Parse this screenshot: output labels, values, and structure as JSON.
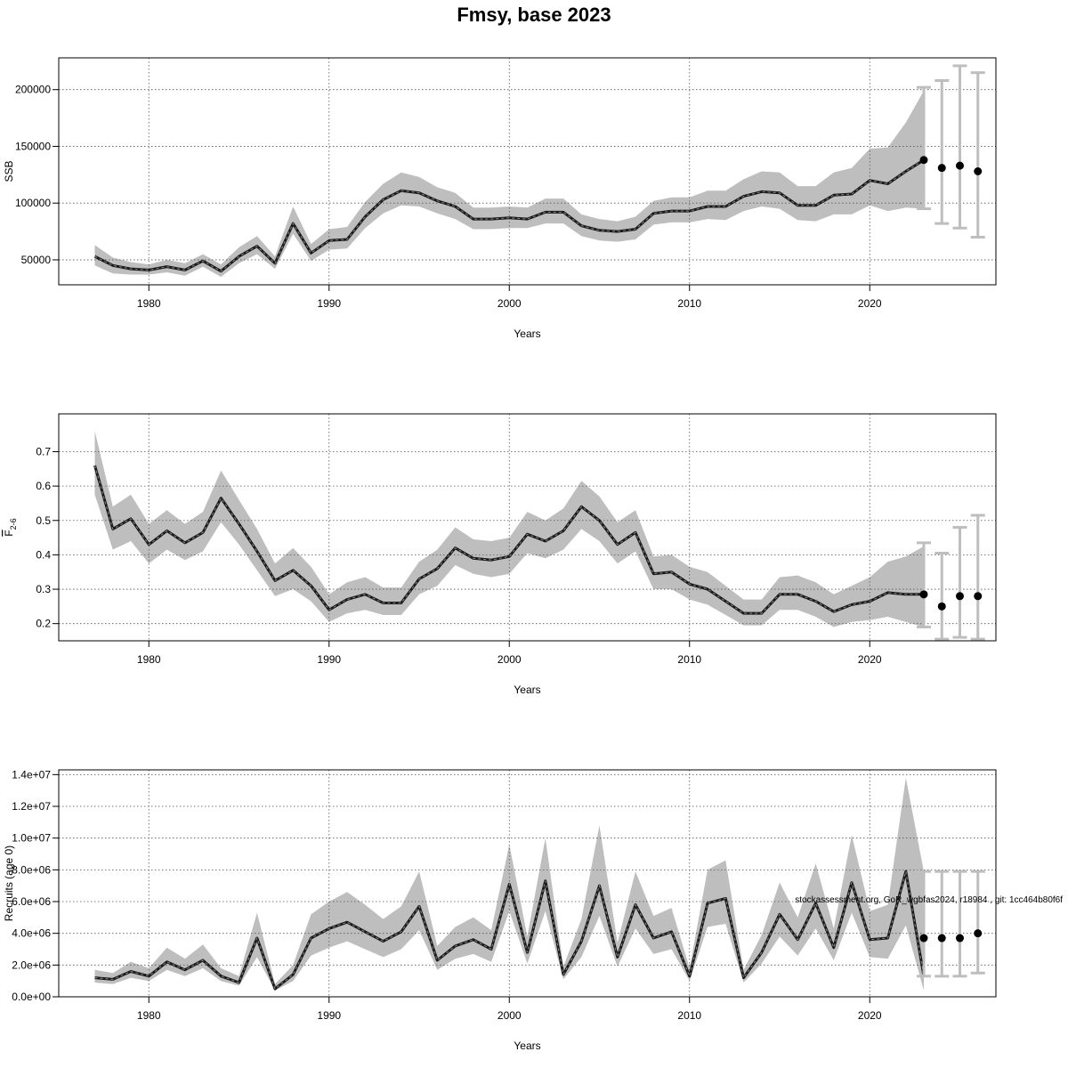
{
  "figure_title": "Fmsy, base 2023",
  "footer_note": "stockassessment.org, GoR_wgbfas2024, r18984 , git: 1cc464b80f6f",
  "colors": {
    "band": "#bebebe",
    "line": "#1a1a1a",
    "error_bar": "#bebebe",
    "point": "#000000",
    "grid": "#555555"
  },
  "chart_data": [
    {
      "type": "line",
      "xlabel": "Years",
      "ylabel": "SSB",
      "xlim": [
        1975,
        2027
      ],
      "ylim": [
        28000,
        228000
      ],
      "x_ticks": [
        1980,
        1990,
        2000,
        2010,
        2020
      ],
      "y_ticks": [
        50000,
        100000,
        150000,
        200000
      ],
      "y_tick_labels": [
        "50000",
        "100000",
        "150000",
        "200000"
      ],
      "grid": true,
      "series": [
        {
          "x": [
            1977,
            1978,
            1979,
            1980,
            1981,
            1982,
            1983,
            1984,
            1985,
            1986,
            1987,
            1988,
            1989,
            1990,
            1991,
            1992,
            1993,
            1994,
            1995,
            1996,
            1997,
            1998,
            1999,
            2000,
            2001,
            2002,
            2003,
            2004,
            2005,
            2006,
            2007,
            2008,
            2009,
            2010,
            2011,
            2012,
            2013,
            2014,
            2015,
            2016,
            2017,
            2018,
            2019,
            2020,
            2021,
            2022,
            2023
          ],
          "values": [
            53000,
            45000,
            42000,
            41000,
            44000,
            41000,
            49000,
            40000,
            53000,
            62000,
            47000,
            82000,
            56000,
            67000,
            68000,
            88000,
            103000,
            111000,
            109000,
            102000,
            97000,
            86000,
            86000,
            87000,
            86000,
            92000,
            92000,
            80000,
            76000,
            75000,
            77000,
            91000,
            93000,
            93000,
            97000,
            97000,
            106000,
            110000,
            109000,
            98000,
            98000,
            107000,
            108000,
            120000,
            117000,
            128000,
            138000
          ],
          "lower": [
            45000,
            38000,
            37000,
            37000,
            39000,
            36000,
            44000,
            35000,
            47000,
            55000,
            42000,
            73000,
            49000,
            59000,
            60000,
            78000,
            91000,
            98000,
            97000,
            91000,
            86000,
            77000,
            77000,
            78000,
            78000,
            82000,
            82000,
            71000,
            67000,
            66000,
            68000,
            81000,
            83000,
            83000,
            86000,
            85000,
            93000,
            97000,
            95000,
            85000,
            84000,
            90000,
            90000,
            98000,
            93000,
            96000,
            95000
          ],
          "upper": [
            63000,
            52000,
            48000,
            46000,
            50000,
            47000,
            55000,
            46000,
            61000,
            71000,
            53000,
            97000,
            64000,
            77000,
            79000,
            101000,
            117000,
            127000,
            123000,
            114000,
            109000,
            96000,
            96000,
            97000,
            96000,
            104000,
            104000,
            90000,
            86000,
            84000,
            88000,
            102000,
            105000,
            105000,
            111000,
            111000,
            121000,
            128000,
            127000,
            115000,
            115000,
            127000,
            131000,
            148000,
            149000,
            171000,
            199000
          ]
        }
      ],
      "forecast": {
        "x": [
          2023,
          2024,
          2025,
          2026
        ],
        "median": [
          138000,
          131000,
          133000,
          128000
        ],
        "low": [
          95000,
          82000,
          78000,
          70000
        ],
        "high": [
          202000,
          208000,
          221000,
          215000
        ]
      }
    },
    {
      "type": "line",
      "xlabel": "Years",
      "ylabel": "F",
      "ylabel_bar": true,
      "ylabel_sub": "2-6",
      "xlim": [
        1975,
        2027
      ],
      "ylim": [
        0.15,
        0.81
      ],
      "x_ticks": [
        1980,
        1990,
        2000,
        2010,
        2020
      ],
      "y_ticks": [
        0.2,
        0.3,
        0.4,
        0.5,
        0.6,
        0.7
      ],
      "y_tick_labels": [
        "0.2",
        "0.3",
        "0.4",
        "0.5",
        "0.6",
        "0.7"
      ],
      "grid": true,
      "series": [
        {
          "x": [
            1977,
            1978,
            1979,
            1980,
            1981,
            1982,
            1983,
            1984,
            1985,
            1986,
            1987,
            1988,
            1989,
            1990,
            1991,
            1992,
            1993,
            1994,
            1995,
            1996,
            1997,
            1998,
            1999,
            2000,
            2001,
            2002,
            2003,
            2004,
            2005,
            2006,
            2007,
            2008,
            2009,
            2010,
            2011,
            2012,
            2013,
            2014,
            2015,
            2016,
            2017,
            2018,
            2019,
            2020,
            2021,
            2022,
            2023
          ],
          "values": [
            0.66,
            0.475,
            0.505,
            0.43,
            0.47,
            0.435,
            0.465,
            0.565,
            0.49,
            0.41,
            0.325,
            0.355,
            0.31,
            0.24,
            0.27,
            0.285,
            0.26,
            0.26,
            0.33,
            0.36,
            0.42,
            0.39,
            0.385,
            0.395,
            0.46,
            0.44,
            0.47,
            0.54,
            0.5,
            0.43,
            0.465,
            0.345,
            0.35,
            0.315,
            0.3,
            0.265,
            0.23,
            0.23,
            0.285,
            0.285,
            0.265,
            0.235,
            0.255,
            0.265,
            0.29,
            0.285,
            0.285
          ],
          "lower": [
            0.575,
            0.415,
            0.44,
            0.375,
            0.415,
            0.385,
            0.41,
            0.495,
            0.43,
            0.355,
            0.28,
            0.3,
            0.265,
            0.205,
            0.23,
            0.24,
            0.225,
            0.225,
            0.285,
            0.31,
            0.37,
            0.345,
            0.335,
            0.345,
            0.405,
            0.39,
            0.415,
            0.475,
            0.44,
            0.375,
            0.41,
            0.3,
            0.3,
            0.27,
            0.255,
            0.225,
            0.195,
            0.195,
            0.24,
            0.24,
            0.22,
            0.19,
            0.205,
            0.21,
            0.22,
            0.205,
            0.19
          ],
          "upper": [
            0.76,
            0.54,
            0.575,
            0.49,
            0.53,
            0.49,
            0.525,
            0.645,
            0.56,
            0.475,
            0.375,
            0.42,
            0.365,
            0.285,
            0.32,
            0.335,
            0.305,
            0.305,
            0.38,
            0.415,
            0.48,
            0.445,
            0.44,
            0.45,
            0.525,
            0.5,
            0.535,
            0.615,
            0.57,
            0.495,
            0.53,
            0.395,
            0.4,
            0.365,
            0.35,
            0.31,
            0.27,
            0.27,
            0.335,
            0.34,
            0.32,
            0.285,
            0.31,
            0.335,
            0.38,
            0.395,
            0.425
          ]
        }
      ],
      "forecast": {
        "x": [
          2023,
          2024,
          2025,
          2026
        ],
        "median": [
          0.285,
          0.25,
          0.28,
          0.28
        ],
        "low": [
          0.19,
          0.155,
          0.16,
          0.155
        ],
        "high": [
          0.435,
          0.405,
          0.48,
          0.515
        ]
      }
    },
    {
      "type": "line",
      "xlabel": "Years",
      "ylabel": "Recruits (age 0)",
      "xlim": [
        1975,
        2027
      ],
      "ylim": [
        0,
        14300000
      ],
      "x_ticks": [
        1980,
        1990,
        2000,
        2010,
        2020
      ],
      "y_ticks": [
        0,
        2000000,
        4000000,
        6000000,
        8000000,
        10000000,
        12000000,
        14000000
      ],
      "y_tick_labels": [
        "0.0e+00",
        "2.0e+06",
        "4.0e+06",
        "6.0e+06",
        "8.0e+06",
        "1.0e+07",
        "1.2e+07",
        "1.4e+07"
      ],
      "grid": true,
      "series": [
        {
          "x": [
            1977,
            1978,
            1979,
            1980,
            1981,
            1982,
            1983,
            1984,
            1985,
            1986,
            1987,
            1988,
            1989,
            1990,
            1991,
            1992,
            1993,
            1994,
            1995,
            1996,
            1997,
            1998,
            1999,
            2000,
            2001,
            2002,
            2003,
            2004,
            2005,
            2006,
            2007,
            2008,
            2009,
            2010,
            2011,
            2012,
            2013,
            2014,
            2015,
            2016,
            2017,
            2018,
            2019,
            2020,
            2021,
            2022,
            2023
          ],
          "values": [
            1200000,
            1100000,
            1600000,
            1300000,
            2200000,
            1700000,
            2300000,
            1300000,
            900000,
            3700000,
            500000,
            1400000,
            3700000,
            4300000,
            4700000,
            4100000,
            3500000,
            4100000,
            5700000,
            2300000,
            3200000,
            3600000,
            3000000,
            7100000,
            2800000,
            7300000,
            1400000,
            3500000,
            7000000,
            2500000,
            5800000,
            3700000,
            4100000,
            1300000,
            5900000,
            6200000,
            1200000,
            2800000,
            5200000,
            3600000,
            5900000,
            3100000,
            7200000,
            3600000,
            3700000,
            7900000,
            1300000
          ],
          "lower": [
            900000,
            800000,
            1200000,
            1000000,
            1700000,
            1300000,
            1800000,
            1000000,
            700000,
            2500000,
            400000,
            1000000,
            2600000,
            3100000,
            3500000,
            3000000,
            2500000,
            3000000,
            4200000,
            1700000,
            2400000,
            2700000,
            2200000,
            5400000,
            2100000,
            5400000,
            1100000,
            2500000,
            5100000,
            1900000,
            4300000,
            2700000,
            3000000,
            1000000,
            4400000,
            4600000,
            900000,
            2100000,
            3800000,
            2600000,
            4300000,
            2300000,
            5300000,
            2500000,
            2400000,
            4500000,
            400000
          ],
          "upper": [
            1700000,
            1500000,
            2200000,
            1800000,
            3100000,
            2400000,
            3300000,
            1800000,
            1300000,
            5300000,
            800000,
            2000000,
            5200000,
            6000000,
            6600000,
            5800000,
            4900000,
            5700000,
            7900000,
            3200000,
            4400000,
            5000000,
            4200000,
            9600000,
            3800000,
            10000000,
            1900000,
            4900000,
            10800000,
            3400000,
            7900000,
            5100000,
            5600000,
            1800000,
            8000000,
            8600000,
            1700000,
            3900000,
            7200000,
            5000000,
            8400000,
            4300000,
            10200000,
            5400000,
            5800000,
            13800000,
            7900000
          ]
        }
      ],
      "forecast": {
        "x": [
          2023,
          2024,
          2025,
          2026
        ],
        "median": [
          3700000,
          3700000,
          3700000,
          4000000
        ],
        "low": [
          1300000,
          1300000,
          1300000,
          1500000
        ],
        "high": [
          7900000,
          7900000,
          7900000,
          7900000
        ]
      }
    }
  ]
}
